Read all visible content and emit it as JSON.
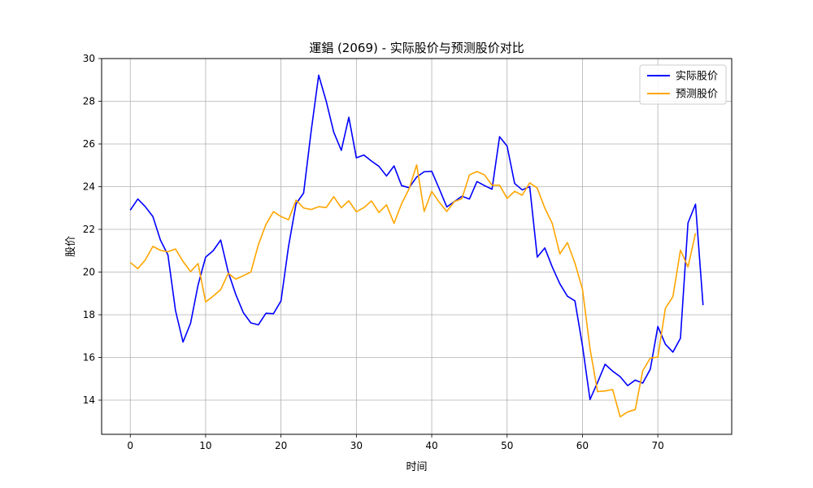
{
  "chart_data": {
    "type": "line",
    "title": "運錩 (2069) - 实际股价与预测股价对比",
    "xlabel": "时间",
    "ylabel": "股价",
    "xlim": [
      -3.8,
      79.8
    ],
    "ylim": [
      12.4,
      30
    ],
    "xticks": [
      0,
      10,
      20,
      30,
      40,
      50,
      60,
      70
    ],
    "yticks": [
      14,
      16,
      18,
      20,
      22,
      24,
      26,
      28,
      30
    ],
    "grid": true,
    "legend_position": "top-right",
    "series": [
      {
        "name": "实际股价",
        "color": "#0000ff",
        "values": [
          22.9,
          23.42,
          23.06,
          22.6,
          21.5,
          20.8,
          18.2,
          16.72,
          17.6,
          19.4,
          20.7,
          21.0,
          21.5,
          20.0,
          18.95,
          18.1,
          17.62,
          17.53,
          18.07,
          18.05,
          18.65,
          21.2,
          23.2,
          23.7,
          26.6,
          29.22,
          28.0,
          26.55,
          25.7,
          27.25,
          25.35,
          25.48,
          25.2,
          24.95,
          24.5,
          24.97,
          24.05,
          23.95,
          24.45,
          24.7,
          24.72,
          23.9,
          23.05,
          23.3,
          23.55,
          23.42,
          24.24,
          24.05,
          23.88,
          26.34,
          25.9,
          24.15,
          23.85,
          24.0,
          20.7,
          21.13,
          20.23,
          19.45,
          18.87,
          18.65,
          16.55,
          14.03,
          14.83,
          15.68,
          15.36,
          15.1,
          14.68,
          14.94,
          14.8,
          15.45,
          17.45,
          16.62,
          16.25,
          16.9,
          22.3,
          23.18,
          18.45
        ]
      },
      {
        "name": "预测股价",
        "color": "#ffa500",
        "values": [
          20.45,
          20.16,
          20.57,
          21.2,
          21.02,
          20.95,
          21.08,
          20.5,
          20.02,
          20.4,
          18.6,
          18.87,
          19.18,
          19.94,
          19.67,
          19.83,
          20.0,
          21.28,
          22.23,
          22.83,
          22.6,
          22.45,
          23.37,
          23.0,
          22.93,
          23.06,
          23.02,
          23.53,
          23.01,
          23.34,
          22.82,
          23.02,
          23.33,
          22.79,
          23.15,
          22.28,
          23.2,
          23.9,
          25.02,
          22.84,
          23.78,
          23.27,
          22.84,
          23.3,
          23.44,
          24.55,
          24.71,
          24.55,
          24.07,
          24.07,
          23.45,
          23.78,
          23.6,
          24.18,
          23.93,
          23.0,
          22.27,
          20.85,
          21.38,
          20.42,
          19.2,
          16.42,
          14.4,
          14.43,
          14.5,
          13.22,
          13.45,
          13.56,
          15.38,
          15.97,
          16.02,
          18.3,
          18.85,
          21.03,
          20.24,
          21.82
        ]
      }
    ]
  }
}
